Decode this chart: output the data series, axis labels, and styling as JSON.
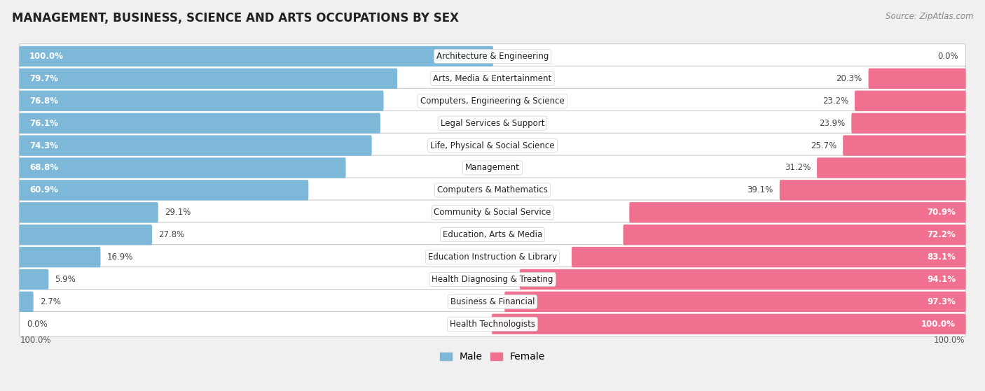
{
  "title": "MANAGEMENT, BUSINESS, SCIENCE AND ARTS OCCUPATIONS BY SEX",
  "source": "Source: ZipAtlas.com",
  "categories": [
    "Architecture & Engineering",
    "Arts, Media & Entertainment",
    "Computers, Engineering & Science",
    "Legal Services & Support",
    "Life, Physical & Social Science",
    "Management",
    "Computers & Mathematics",
    "Community & Social Service",
    "Education, Arts & Media",
    "Education Instruction & Library",
    "Health Diagnosing & Treating",
    "Business & Financial",
    "Health Technologists"
  ],
  "male": [
    100.0,
    79.7,
    76.8,
    76.1,
    74.3,
    68.8,
    60.9,
    29.1,
    27.8,
    16.9,
    5.9,
    2.7,
    0.0
  ],
  "female": [
    0.0,
    20.3,
    23.2,
    23.9,
    25.7,
    31.2,
    39.1,
    70.9,
    72.2,
    83.1,
    94.1,
    97.3,
    100.0
  ],
  "male_color": "#7db8d8",
  "female_color": "#f07090",
  "bg_color": "#f0f0f0",
  "bar_bg_color": "#ffffff",
  "row_edge_color": "#cccccc",
  "title_fontsize": 12,
  "label_fontsize": 8.5,
  "value_fontsize": 8.5,
  "legend_fontsize": 10,
  "source_fontsize": 8.5
}
